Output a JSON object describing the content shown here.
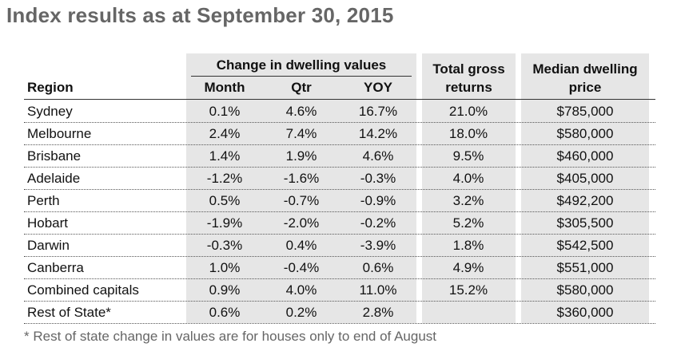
{
  "title": "Index results as at September 30, 2015",
  "headers": {
    "region": "Region",
    "change_group": "Change in dwelling values",
    "month": "Month",
    "qtr": "Qtr",
    "yoy": "YOY",
    "total_gross_line1": "Total gross",
    "total_gross_line2": "returns",
    "median_line1": "Median dwelling",
    "median_line2": "price"
  },
  "rows": [
    {
      "region": "Sydney",
      "month": "0.1%",
      "qtr": "4.6%",
      "yoy": "16.7%",
      "total": "21.0%",
      "median": "$785,000"
    },
    {
      "region": "Melbourne",
      "month": "2.4%",
      "qtr": "7.4%",
      "yoy": "14.2%",
      "total": "18.0%",
      "median": "$580,000"
    },
    {
      "region": "Brisbane",
      "month": "1.4%",
      "qtr": "1.9%",
      "yoy": "4.6%",
      "total": "9.5%",
      "median": "$460,000"
    },
    {
      "region": "Adelaide",
      "month": "-1.2%",
      "qtr": "-1.6%",
      "yoy": "-0.3%",
      "total": "4.0%",
      "median": "$405,000"
    },
    {
      "region": "Perth",
      "month": "0.5%",
      "qtr": "-0.7%",
      "yoy": "-0.9%",
      "total": "3.2%",
      "median": "$492,200"
    },
    {
      "region": "Hobart",
      "month": "-1.9%",
      "qtr": "-2.0%",
      "yoy": "-0.2%",
      "total": "5.2%",
      "median": "$305,500"
    },
    {
      "region": "Darwin",
      "month": "-0.3%",
      "qtr": "0.4%",
      "yoy": "-3.9%",
      "total": "1.8%",
      "median": "$542,500"
    },
    {
      "region": "Canberra",
      "month": "1.0%",
      "qtr": "-0.4%",
      "yoy": "0.6%",
      "total": "4.9%",
      "median": "$551,000"
    },
    {
      "region": "Combined capitals",
      "month": "0.9%",
      "qtr": "4.0%",
      "yoy": "11.0%",
      "total": "15.2%",
      "median": "$580,000"
    },
    {
      "region": "Rest of State*",
      "month": "0.6%",
      "qtr": "0.2%",
      "yoy": "2.8%",
      "total": "",
      "median": "$360,000"
    }
  ],
  "footnote": "* Rest of state change in values are for houses only to end of August"
}
